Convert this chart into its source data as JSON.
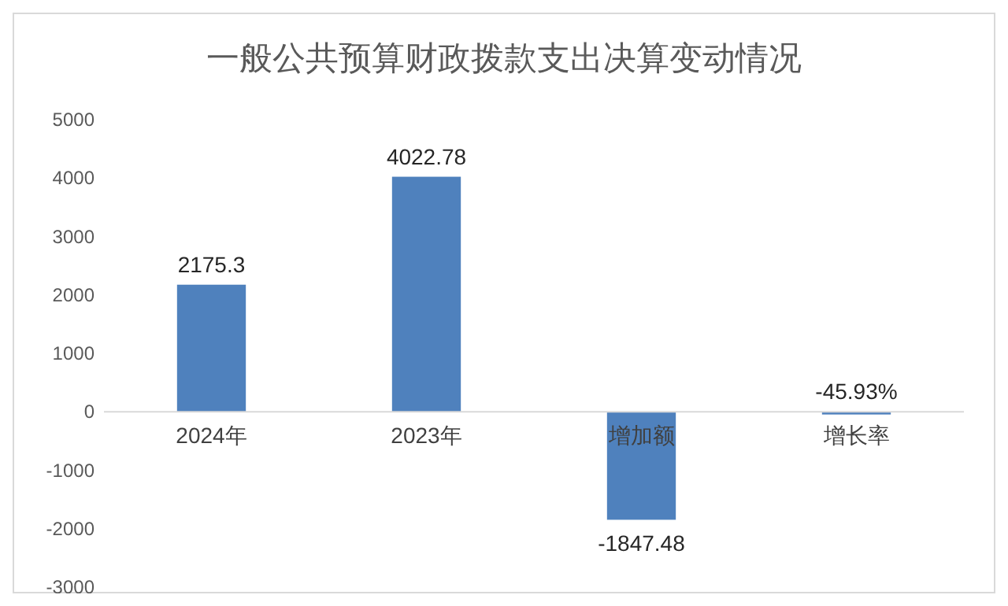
{
  "chart_data": {
    "type": "bar",
    "title": "一般公共预算财政拨款支出决算变动情况",
    "categories": [
      "2024年",
      "2023年",
      "增加额",
      "增长率"
    ],
    "values": [
      2175.3,
      4022.78,
      -1847.48,
      -45.93
    ],
    "value_labels": [
      "2175.3",
      "4022.78",
      "-1847.48",
      "-45.93%"
    ],
    "color": "#4f81bd",
    "ylim": [
      -3000,
      5000
    ],
    "yticks": [
      -3000,
      -2000,
      -1000,
      0,
      1000,
      2000,
      3000,
      4000,
      5000
    ],
    "grid": false
  }
}
